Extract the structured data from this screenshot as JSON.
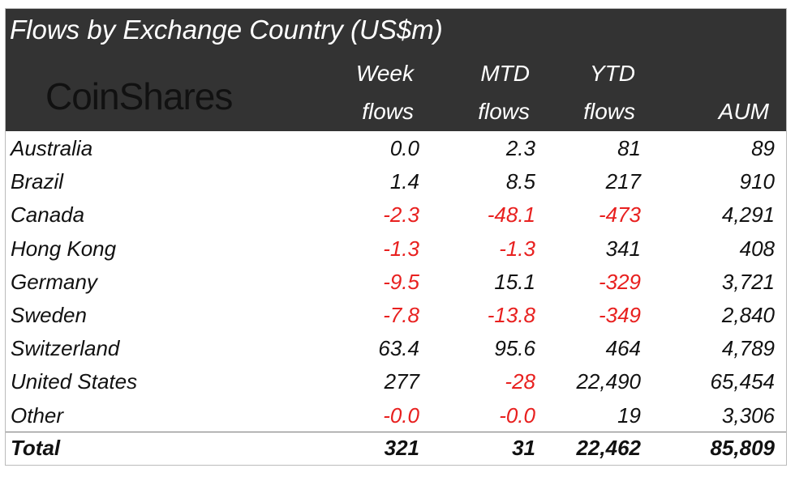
{
  "title": "Flows by Exchange Country (US$m)",
  "logo_text": "CoinShares",
  "columns": [
    {
      "line1": "Week",
      "line2": "flows"
    },
    {
      "line1": "MTD",
      "line2": "flows"
    },
    {
      "line1": "YTD",
      "line2": "flows"
    },
    {
      "line1": "",
      "line2": "AUM"
    }
  ],
  "negative_color": "#e8201f",
  "header_bg": "#333333",
  "rows": [
    {
      "name": "Australia",
      "values": [
        "0.0",
        "2.3",
        "81",
        "89"
      ]
    },
    {
      "name": "Brazil",
      "values": [
        "1.4",
        "8.5",
        "217",
        "910"
      ]
    },
    {
      "name": "Canada",
      "values": [
        "-2.3",
        "-48.1",
        "-473",
        "4,291"
      ]
    },
    {
      "name": "Hong Kong",
      "values": [
        "-1.3",
        "-1.3",
        "341",
        "408"
      ]
    },
    {
      "name": "Germany",
      "values": [
        "-9.5",
        "15.1",
        "-329",
        "3,721"
      ]
    },
    {
      "name": "Sweden",
      "values": [
        "-7.8",
        "-13.8",
        "-349",
        "2,840"
      ]
    },
    {
      "name": "Switzerland",
      "values": [
        "63.4",
        "95.6",
        "464",
        "4,789"
      ]
    },
    {
      "name": "United States",
      "values": [
        "277",
        "-28",
        "22,490",
        "65,454"
      ]
    },
    {
      "name": "Other",
      "values": [
        "-0.0",
        "-0.0",
        "19",
        "3,306"
      ]
    }
  ],
  "total": {
    "name": "Total",
    "values": [
      "321",
      "31",
      "22,462",
      "85,809"
    ]
  }
}
